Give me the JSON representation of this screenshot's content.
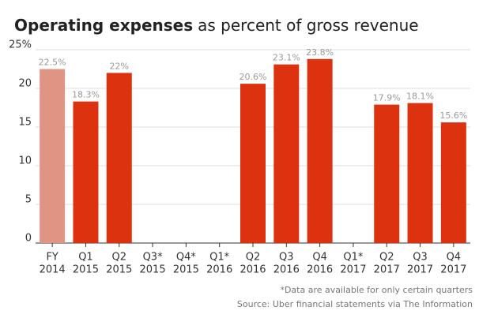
{
  "chart_data": {
    "type": "bar",
    "title_bold": "Operating expenses",
    "title": "as percent of gross revenue",
    "categories": [
      [
        "FY",
        "2014"
      ],
      [
        "Q1",
        "2015"
      ],
      [
        "Q2",
        "2015"
      ],
      [
        "Q3*",
        "2015"
      ],
      [
        "Q4*",
        "2015"
      ],
      [
        "Q1*",
        "2016"
      ],
      [
        "Q2",
        "2016"
      ],
      [
        "Q3",
        "2016"
      ],
      [
        "Q4",
        "2016"
      ],
      [
        "Q1*",
        "2017"
      ],
      [
        "Q2",
        "2017"
      ],
      [
        "Q3",
        "2017"
      ],
      [
        "Q4",
        "2017"
      ]
    ],
    "values": [
      22.5,
      18.3,
      22,
      null,
      null,
      null,
      20.6,
      23.1,
      23.8,
      null,
      17.9,
      18.1,
      15.6
    ],
    "value_labels": [
      "22.5%",
      "18.3%",
      "22%",
      null,
      null,
      null,
      "20.6%",
      "23.1%",
      "23.8%",
      null,
      "17.9%",
      "18.1%",
      "15.6%"
    ],
    "colors": [
      "#e09484",
      "#dd3210",
      "#dd3210",
      "#dd3210",
      "#dd3210",
      "#dd3210",
      "#dd3210",
      "#dd3210",
      "#dd3210",
      "#dd3210",
      "#dd3210",
      "#dd3210",
      "#dd3210"
    ],
    "ylim": [
      0,
      25
    ],
    "yticks": [
      0,
      5,
      10,
      15,
      20,
      {
        "value": 25,
        "label": "25%"
      }
    ],
    "grid": true,
    "notes": [
      "*Data are available for only certain quarters",
      "Source: Uber financial statements via The Information"
    ]
  }
}
